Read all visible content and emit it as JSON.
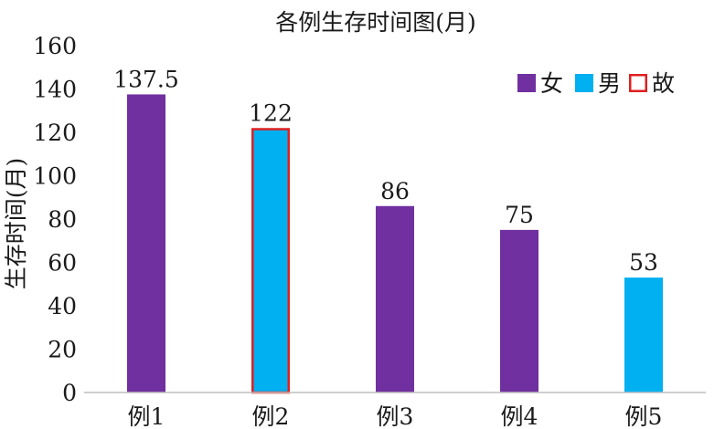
{
  "chart_data": {
    "type": "bar",
    "title": "各例生存时间图(月)",
    "xlabel": "",
    "ylabel": "生存时间(月)",
    "ylim": [
      0,
      160
    ],
    "yticks": [
      0,
      20,
      40,
      60,
      80,
      100,
      120,
      140,
      160
    ],
    "categories": [
      "例1",
      "例2",
      "例3",
      "例4",
      "例5"
    ],
    "values": [
      137.5,
      122,
      86,
      75,
      53
    ],
    "data_labels": [
      "137.5",
      "122",
      "86",
      "75",
      "53"
    ],
    "sex": [
      "女",
      "男",
      "女",
      "女",
      "男"
    ],
    "deceased": [
      false,
      true,
      false,
      false,
      false
    ],
    "grid": false,
    "legend": {
      "placement": "top-right",
      "entries": [
        {
          "label": "女",
          "type": "fill",
          "color": "#7030a0"
        },
        {
          "label": "男",
          "type": "fill",
          "color": "#00b0f0"
        },
        {
          "label": "故",
          "type": "outline",
          "color": "#e02020"
        }
      ]
    },
    "colors": {
      "female": "#7030a0",
      "male": "#00b0f0",
      "deceased_outline": "#e02020",
      "axis": "#bfbfbf"
    }
  }
}
